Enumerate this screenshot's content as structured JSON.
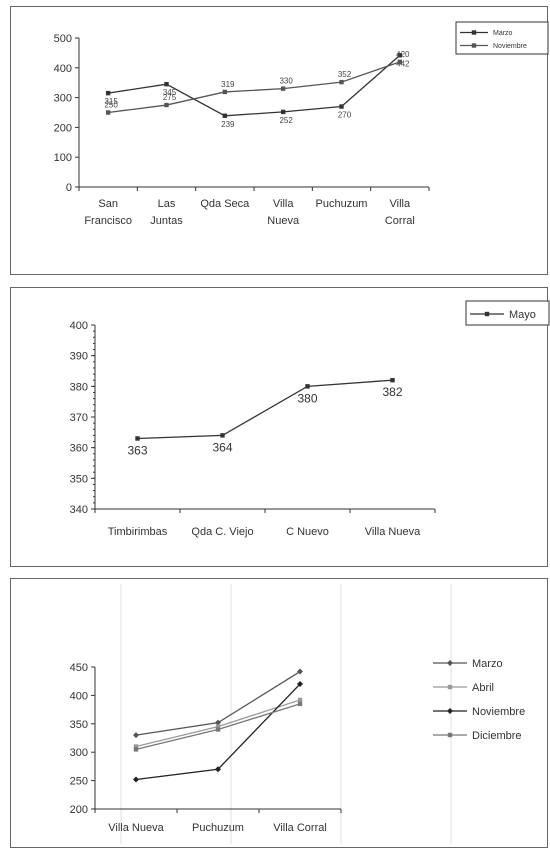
{
  "chart_data": [
    {
      "type": "line",
      "categories": [
        [
          "San",
          "Francisco"
        ],
        [
          "Las",
          "Juntas"
        ],
        [
          "Qda Seca"
        ],
        [
          "Villa",
          "Nueva"
        ],
        [
          "Puchuzum"
        ],
        [
          "Villa",
          "Corral"
        ]
      ],
      "ylim": [
        0,
        500
      ],
      "yticks": [
        "0",
        "100",
        "200",
        "300",
        "400",
        "500"
      ],
      "legend_position": "top-right",
      "series": [
        {
          "name": "Marzo",
          "values": [
            315,
            345,
            239,
            252,
            270,
            442
          ],
          "labels": [
            "315",
            "345",
            "239",
            "252",
            "270",
            "442"
          ],
          "label_side": "below",
          "color": "#333333"
        },
        {
          "name": "Noviembre",
          "values": [
            250,
            275,
            319,
            330,
            352,
            420
          ],
          "labels": [
            "250",
            "275",
            "319",
            "330",
            "352",
            "420"
          ],
          "label_side": "above",
          "color": "#555555"
        }
      ]
    },
    {
      "type": "line",
      "categories": [
        [
          "Timbirimbas"
        ],
        [
          "Qda C. Viejo"
        ],
        [
          "C Nuevo"
        ],
        [
          "Villa Nueva"
        ]
      ],
      "ylim": [
        340,
        400
      ],
      "yticks": [
        "340",
        "350",
        "360",
        "370",
        "380",
        "390",
        "400"
      ],
      "legend_position": "top-right",
      "series": [
        {
          "name": "Mayo",
          "values": [
            363,
            364,
            380,
            382
          ],
          "labels": [
            "363",
            "364",
            "380",
            "382"
          ],
          "label_side": "below",
          "color": "#333333"
        }
      ]
    },
    {
      "type": "line",
      "categories": [
        [
          "Villa Nueva"
        ],
        [
          "Puchuzum"
        ],
        [
          "Villa Corral"
        ]
      ],
      "ylim": [
        200,
        450
      ],
      "yticks": [
        "200",
        "250",
        "300",
        "350",
        "400",
        "450"
      ],
      "legend_position": "right",
      "series": [
        {
          "name": "Marzo",
          "values": [
            330,
            352,
            442
          ],
          "color": "#555555"
        },
        {
          "name": "Abril",
          "values": [
            310,
            345,
            392
          ],
          "color": "#999999"
        },
        {
          "name": "Noviembre",
          "values": [
            252,
            270,
            420
          ],
          "color": "#222222"
        },
        {
          "name": "Diciembre",
          "values": [
            305,
            340,
            385
          ],
          "color": "#777777"
        }
      ]
    }
  ]
}
